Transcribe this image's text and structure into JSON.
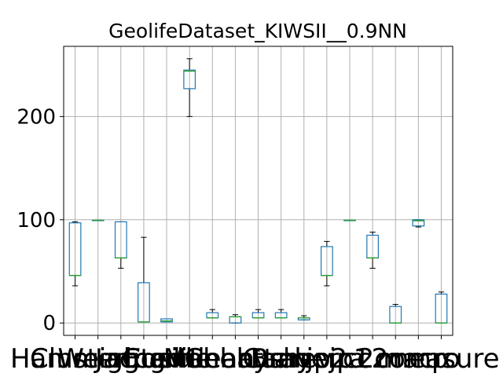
{
  "chart_data": {
    "type": "box",
    "title": "GeolifeDataset_KIWSII__0.9NN",
    "xlabel": "",
    "ylabel": "",
    "ylim": [
      -12,
      268
    ],
    "yticks": [
      0,
      100,
      200
    ],
    "grid": true,
    "legend": "none",
    "colors": {
      "box": "#1f77b4",
      "median": "#2ca02c",
      "whisker": "#000000",
      "grid": "#b0b0b0"
    },
    "categories": [
      "Hamming",
      "Clustering",
      "Weighted",
      "Jaccard",
      "Cosine",
      "Euclidean",
      "Lee",
      "Manhattan",
      "Chebyshev",
      "Bray",
      "Canberra",
      "jp2",
      "jp1",
      "c2",
      "c2comp",
      "macro",
      "measure"
    ],
    "tick_labels": [
      "Hamming",
      "Clustering",
      "Weighted",
      "Jaccard",
      "Cosine",
      "Euclidean",
      "Lee",
      "Manhattan",
      "Chebyshev",
      "Bray",
      "Canberra",
      "jp2",
      "jp1",
      "c2",
      "c2comp",
      "macro",
      "measure"
    ],
    "boxes": [
      {
        "min": 36,
        "q1": 46,
        "median": 46,
        "q3": 97,
        "max": 98
      },
      {
        "min": 99.5,
        "q1": 99.5,
        "median": 99.5,
        "q3": 99.5,
        "max": 99.5
      },
      {
        "min": 53,
        "q1": 63,
        "median": 63,
        "q3": 98,
        "max": 98
      },
      {
        "min": 1,
        "q1": 1,
        "median": 1,
        "q3": 39,
        "max": 83
      },
      {
        "min": 1,
        "q1": 1,
        "median": 2,
        "q3": 4,
        "max": 4
      },
      {
        "min": 200,
        "q1": 227,
        "median": 244,
        "q3": 245,
        "max": 256
      },
      {
        "min": 5,
        "q1": 5,
        "median": 5,
        "q3": 10,
        "max": 13
      },
      {
        "min": 0,
        "q1": 0,
        "median": 6,
        "q3": 6,
        "max": 8
      },
      {
        "min": 5,
        "q1": 5,
        "median": 5,
        "q3": 10,
        "max": 13
      },
      {
        "min": 5,
        "q1": 5,
        "median": 5,
        "q3": 10,
        "max": 13
      },
      {
        "min": 3,
        "q1": 3,
        "median": 5,
        "q3": 5,
        "max": 7
      },
      {
        "min": 36,
        "q1": 46,
        "median": 46,
        "q3": 74,
        "max": 79
      },
      {
        "min": 99.5,
        "q1": 99.5,
        "median": 99.5,
        "q3": 99.5,
        "max": 99.5
      },
      {
        "min": 53,
        "q1": 63,
        "median": 63,
        "q3": 85,
        "max": 88
      },
      {
        "min": 0,
        "q1": 0,
        "median": 0,
        "q3": 16,
        "max": 18
      },
      {
        "min": 93,
        "q1": 94,
        "median": 99,
        "q3": 100,
        "max": 100
      },
      {
        "min": 0,
        "q1": 0,
        "median": 0,
        "q3": 28,
        "max": 30
      }
    ]
  }
}
